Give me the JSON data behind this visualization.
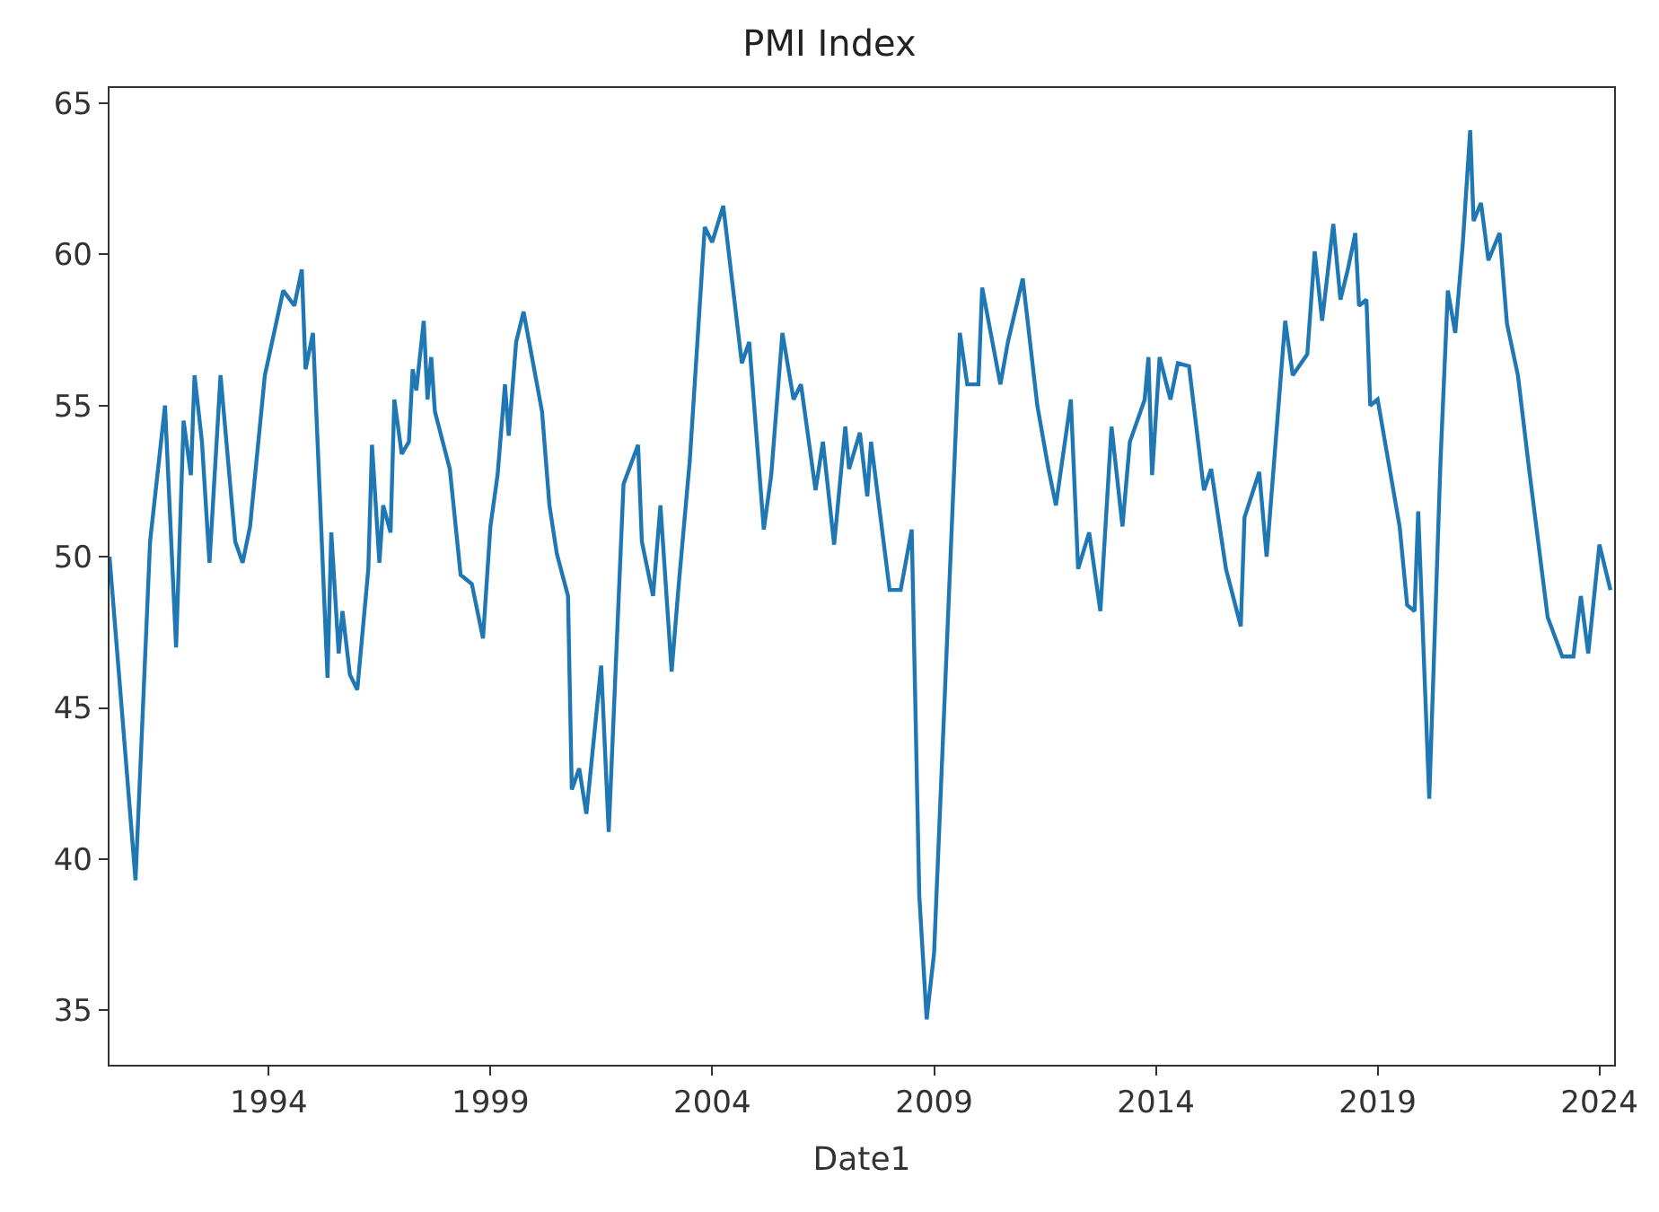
{
  "chart_data": {
    "type": "line",
    "title": "PMI Index",
    "xlabel": "Date1",
    "x": [
      "1990-06",
      "1991-01",
      "1991-05",
      "1991-09",
      "1991-12",
      "1992-02",
      "1992-04",
      "1992-05",
      "1992-07",
      "1992-09",
      "1992-12",
      "1993-04",
      "1993-06",
      "1993-08",
      "1993-12",
      "1994-05",
      "1994-08",
      "1994-10",
      "1994-11",
      "1995-01",
      "1995-05",
      "1995-06",
      "1995-08",
      "1995-09",
      "1995-11",
      "1996-01",
      "1996-04",
      "1996-05",
      "1996-07",
      "1996-08",
      "1996-10",
      "1996-11",
      "1997-01",
      "1997-03",
      "1997-04",
      "1997-05",
      "1997-07",
      "1997-08",
      "1997-09",
      "1997-10",
      "1998-02",
      "1998-05",
      "1998-08",
      "1998-11",
      "1999-01",
      "1999-03",
      "1999-05",
      "1999-06",
      "1999-08",
      "1999-10",
      "2000-03",
      "2000-05",
      "2000-07",
      "2000-10",
      "2000-11",
      "2001-01",
      "2001-03",
      "2001-07",
      "2001-09",
      "2002-01",
      "2002-05",
      "2002-06",
      "2002-09",
      "2002-11",
      "2003-02",
      "2003-04",
      "2003-07",
      "2003-11",
      "2004-01",
      "2004-04",
      "2004-09",
      "2004-11",
      "2005-03",
      "2005-05",
      "2005-08",
      "2005-11",
      "2006-01",
      "2006-05",
      "2006-07",
      "2006-10",
      "2007-01",
      "2007-02",
      "2007-05",
      "2007-07",
      "2007-08",
      "2008-01",
      "2008-04",
      "2008-07",
      "2008-09",
      "2008-11",
      "2009-01",
      "2009-08",
      "2009-10",
      "2010-01",
      "2010-02",
      "2010-07",
      "2010-09",
      "2011-01",
      "2011-05",
      "2011-08",
      "2011-10",
      "2012-01",
      "2012-02",
      "2012-04",
      "2012-07",
      "2012-10",
      "2013-01",
      "2013-04",
      "2013-06",
      "2013-10",
      "2013-11",
      "2013-12",
      "2014-02",
      "2014-05",
      "2014-07",
      "2014-10",
      "2015-02",
      "2015-04",
      "2015-08",
      "2015-12",
      "2016-01",
      "2016-05",
      "2016-07",
      "2016-12",
      "2017-02",
      "2017-06",
      "2017-08",
      "2017-10",
      "2018-01",
      "2018-03",
      "2018-05",
      "2018-07",
      "2018-08",
      "2018-10",
      "2018-11",
      "2019-01",
      "2019-07",
      "2019-09",
      "2019-11",
      "2019-12",
      "2020-03",
      "2020-06",
      "2020-08",
      "2020-10",
      "2020-12",
      "2021-02",
      "2021-03",
      "2021-05",
      "2021-07",
      "2021-10",
      "2021-12",
      "2022-03",
      "2022-06",
      "2022-11",
      "2023-03",
      "2023-06",
      "2023-08",
      "2023-10",
      "2024-01",
      "2024-04"
    ],
    "series": [
      {
        "color": "#1f77b4",
        "values": [
          50,
          39.3,
          50.5,
          55,
          47,
          54.5,
          52.7,
          56,
          53.8,
          49.8,
          56,
          50.5,
          49.8,
          51,
          56,
          58.8,
          58.3,
          59.5,
          56.2,
          57.4,
          46,
          50.8,
          46.8,
          48.2,
          46.1,
          45.6,
          49.6,
          53.7,
          49.8,
          51.7,
          50.8,
          55.2,
          53.4,
          53.8,
          56.2,
          55.5,
          57.8,
          55.2,
          56.6,
          54.8,
          52.9,
          49.4,
          49.1,
          47.3,
          51,
          52.7,
          55.7,
          54,
          57.1,
          58.1,
          54.8,
          51.7,
          50.1,
          48.7,
          42.3,
          43,
          41.5,
          46.4,
          40.9,
          52.4,
          53.7,
          50.5,
          48.7,
          51.7,
          46.2,
          49.1,
          53.2,
          60.9,
          60.4,
          61.6,
          56.4,
          57.1,
          50.9,
          52.7,
          57.4,
          55.2,
          55.7,
          52.2,
          53.8,
          50.4,
          54.3,
          52.9,
          54.1,
          52,
          53.8,
          48.9,
          48.9,
          50.9,
          38.8,
          34.7,
          36.9,
          57.4,
          55.7,
          55.7,
          58.9,
          55.7,
          57.1,
          59.2,
          55,
          52.9,
          51.7,
          54.3,
          55.2,
          49.6,
          50.8,
          48.2,
          54.3,
          51,
          53.8,
          55.2,
          56.6,
          52.7,
          56.6,
          55.2,
          56.4,
          56.3,
          52.2,
          52.9,
          49.6,
          47.7,
          51.3,
          52.8,
          50,
          57.8,
          56,
          56.7,
          60.1,
          57.8,
          61,
          58.5,
          59.5,
          60.7,
          58.3,
          58.5,
          55,
          55.2,
          51,
          48.4,
          48.2,
          51.5,
          42,
          53.1,
          58.8,
          57.4,
          60.3,
          64.1,
          61.1,
          61.7,
          59.8,
          60.7,
          57.7,
          56,
          52.9,
          48,
          46.7,
          46.7,
          48.7,
          46.8,
          50.4,
          48.9
        ]
      }
    ],
    "xlim": [
      "1990-06",
      "2024-05"
    ],
    "xticks": [
      {
        "value": "1994-01-01",
        "label": "1994"
      },
      {
        "value": "1999-01-01",
        "label": "1999"
      },
      {
        "value": "2004-01-01",
        "label": "2004"
      },
      {
        "value": "2009-01-01",
        "label": "2009"
      },
      {
        "value": "2014-01-01",
        "label": "2014"
      },
      {
        "value": "2019-01-01",
        "label": "2019"
      },
      {
        "value": "2024-01-01",
        "label": "2024"
      }
    ],
    "ylim": [
      33.2,
      65.5
    ],
    "yticks": [
      35,
      40,
      45,
      50,
      55,
      60,
      65
    ],
    "marker": "none",
    "line_style": "solid"
  }
}
